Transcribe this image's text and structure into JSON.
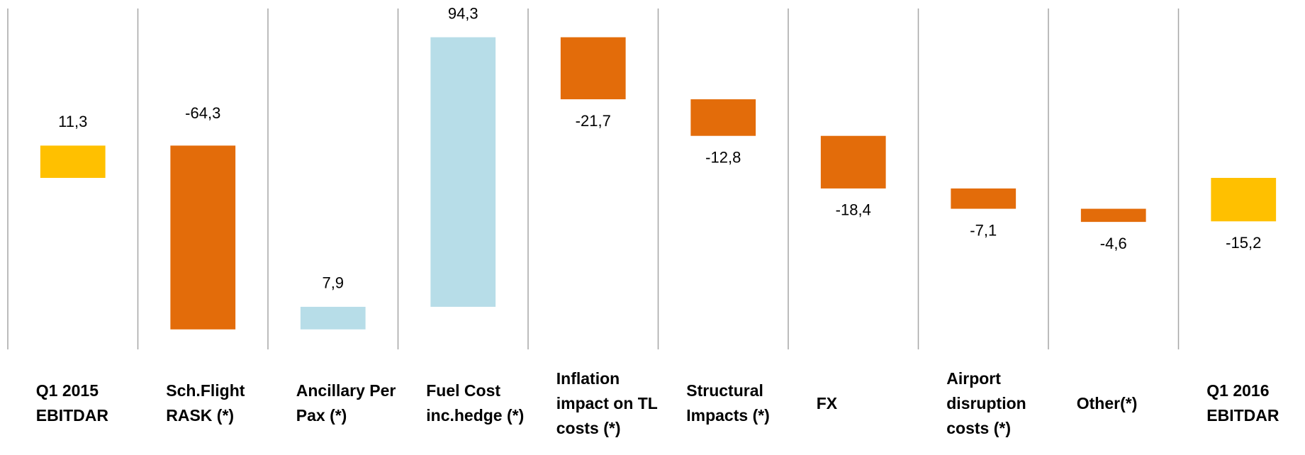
{
  "chart_data": {
    "type": "waterfall",
    "categories": [
      "Q1 2015 EBITDAR",
      "Sch.Flight RASK (*)",
      "Ancillary Per Pax (*)",
      "Fuel Cost inc.hedge (*)",
      "Inflation impact on TL costs (*)",
      "Structural Impacts (*)",
      "FX",
      "Airport disruption costs (*)",
      "Other(*)",
      "Q1 2016 EBITDAR"
    ],
    "values": [
      11.3,
      -64.3,
      7.9,
      94.3,
      -21.7,
      -12.8,
      -18.4,
      -7.1,
      -4.6,
      -15.2
    ],
    "value_labels": [
      "11,3",
      "-64,3",
      "7,9",
      "94,3",
      "-21,7",
      "-12,8",
      "-18,4",
      "-7,1",
      "-4,6",
      "-15,2"
    ],
    "measure": [
      "total",
      "relative",
      "relative",
      "relative",
      "relative",
      "relative",
      "relative",
      "relative",
      "relative",
      "total"
    ],
    "colors": [
      "#ffc000",
      "#e36c0a",
      "#b7dde8",
      "#b7dde8",
      "#e36c0a",
      "#e36c0a",
      "#e36c0a",
      "#e36c0a",
      "#e36c0a",
      "#ffc000"
    ],
    "ylim": [
      -60,
      60
    ]
  }
}
